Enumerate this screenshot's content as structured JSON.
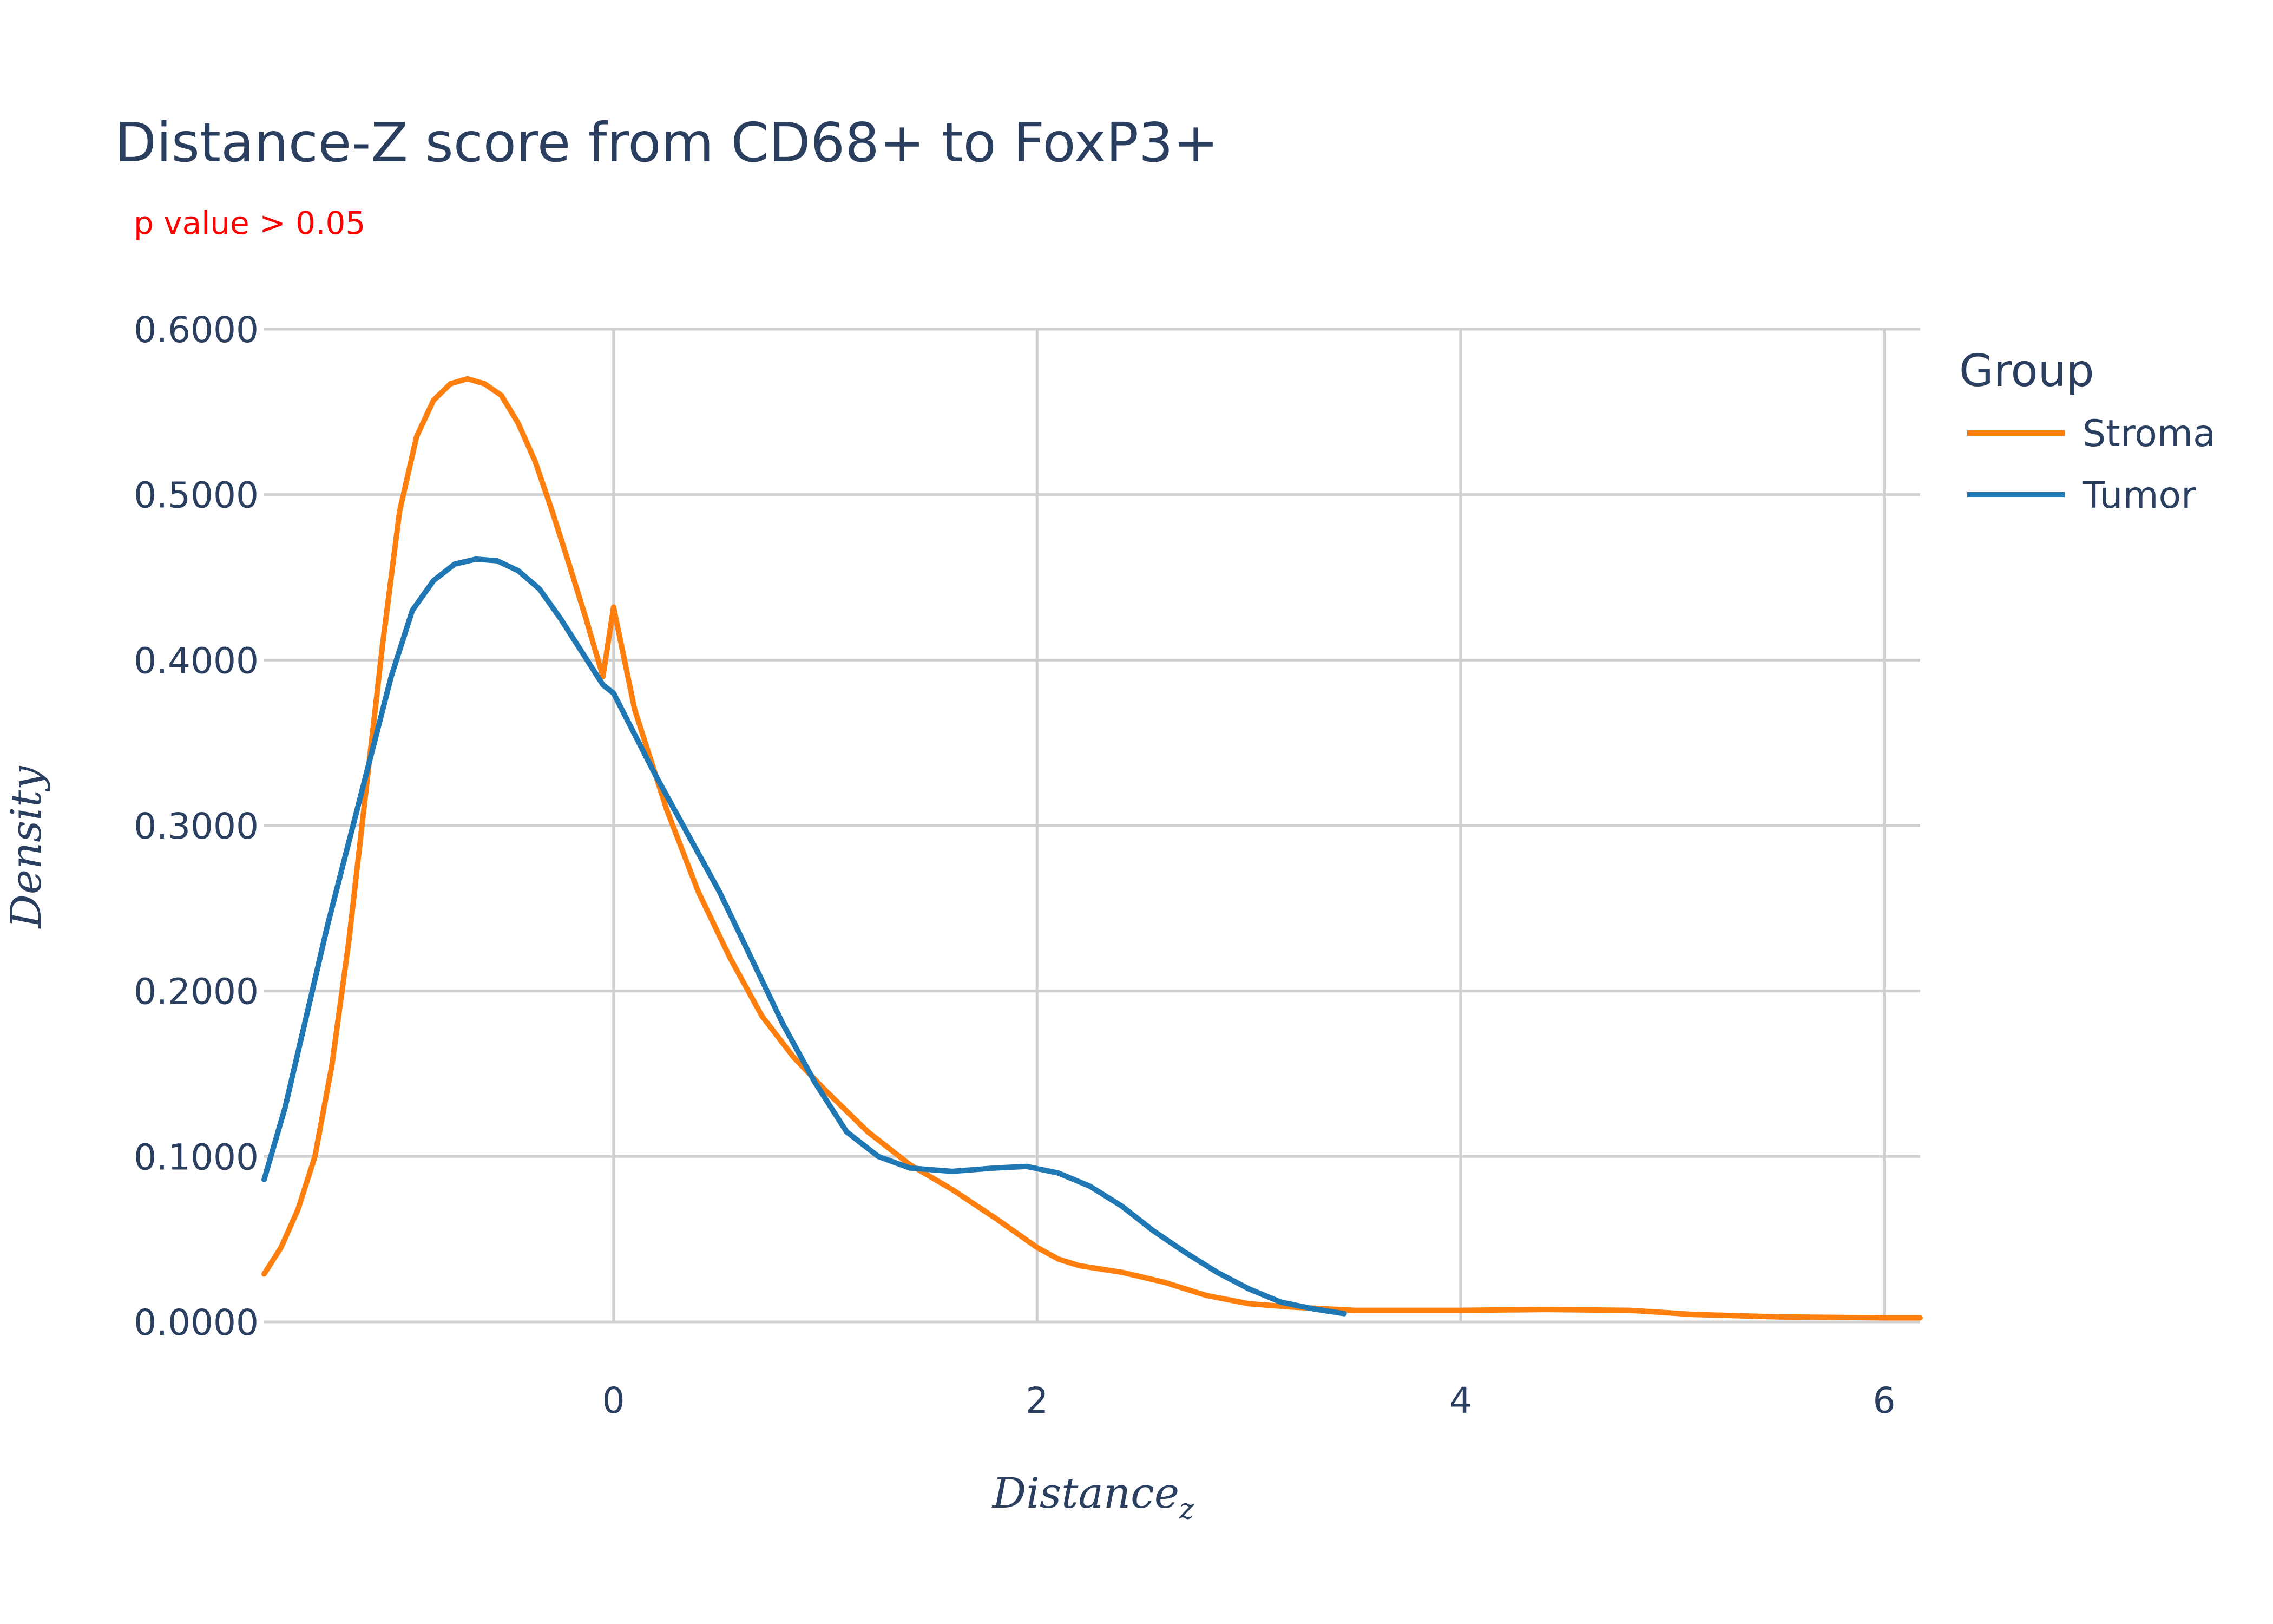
{
  "chart_data": {
    "type": "line",
    "title": "Distance-Z score from CD68+ to FoxP3+",
    "subtitle": "p value > 0.05",
    "xlabel_main": "Distance",
    "xlabel_sub": "z",
    "ylabel": "Density",
    "xlim": [
      -1.65,
      6.17
    ],
    "ylim": [
      0,
      0.6
    ],
    "x_ticks": [
      0,
      2,
      4,
      6
    ],
    "x_tick_labels": [
      "0",
      "2",
      "4",
      "6"
    ],
    "y_ticks": [
      0,
      0.1,
      0.2,
      0.3,
      0.4,
      0.5,
      0.6
    ],
    "y_tick_labels": [
      "0.0000",
      "0.1000",
      "0.2000",
      "0.3000",
      "0.4000",
      "0.5000",
      "0.6000"
    ],
    "grid": true,
    "legend_title": "Group",
    "legend_position": "top-right",
    "series": [
      {
        "name": "Stroma",
        "color": "#ff7f0e",
        "points": [
          [
            -1.65,
            0.029
          ],
          [
            -1.57,
            0.045
          ],
          [
            -1.49,
            0.068
          ],
          [
            -1.41,
            0.1
          ],
          [
            -1.33,
            0.155
          ],
          [
            -1.25,
            0.23
          ],
          [
            -1.17,
            0.32
          ],
          [
            -1.09,
            0.41
          ],
          [
            -1.01,
            0.49
          ],
          [
            -0.93,
            0.535
          ],
          [
            -0.85,
            0.557
          ],
          [
            -0.77,
            0.567
          ],
          [
            -0.69,
            0.57
          ],
          [
            -0.61,
            0.567
          ],
          [
            -0.53,
            0.56
          ],
          [
            -0.45,
            0.543
          ],
          [
            -0.37,
            0.52
          ],
          [
            -0.29,
            0.49
          ],
          [
            -0.21,
            0.458
          ],
          [
            -0.13,
            0.425
          ],
          [
            -0.05,
            0.39
          ],
          [
            0.0,
            0.432
          ],
          [
            0.1,
            0.37
          ],
          [
            0.25,
            0.31
          ],
          [
            0.4,
            0.26
          ],
          [
            0.55,
            0.22
          ],
          [
            0.7,
            0.185
          ],
          [
            0.85,
            0.16
          ],
          [
            1.0,
            0.14
          ],
          [
            1.2,
            0.115
          ],
          [
            1.4,
            0.095
          ],
          [
            1.6,
            0.08
          ],
          [
            1.8,
            0.063
          ],
          [
            2.0,
            0.045
          ],
          [
            2.1,
            0.038
          ],
          [
            2.2,
            0.034
          ],
          [
            2.4,
            0.03
          ],
          [
            2.6,
            0.024
          ],
          [
            2.8,
            0.016
          ],
          [
            3.0,
            0.011
          ],
          [
            3.2,
            0.009
          ],
          [
            3.5,
            0.007
          ],
          [
            4.0,
            0.007
          ],
          [
            4.4,
            0.0075
          ],
          [
            4.8,
            0.007
          ],
          [
            5.1,
            0.0045
          ],
          [
            5.5,
            0.003
          ],
          [
            6.0,
            0.0025
          ],
          [
            6.17,
            0.0025
          ]
        ]
      },
      {
        "name": "Tumor",
        "color": "#1f77b4",
        "points": [
          [
            -1.65,
            0.086
          ],
          [
            -1.55,
            0.13
          ],
          [
            -1.45,
            0.185
          ],
          [
            -1.35,
            0.24
          ],
          [
            -1.25,
            0.29
          ],
          [
            -1.15,
            0.34
          ],
          [
            -1.05,
            0.39
          ],
          [
            -0.95,
            0.43
          ],
          [
            -0.85,
            0.448
          ],
          [
            -0.75,
            0.458
          ],
          [
            -0.65,
            0.461
          ],
          [
            -0.55,
            0.46
          ],
          [
            -0.45,
            0.454
          ],
          [
            -0.35,
            0.443
          ],
          [
            -0.25,
            0.425
          ],
          [
            -0.15,
            0.405
          ],
          [
            -0.05,
            0.385
          ],
          [
            0.0,
            0.38
          ],
          [
            0.1,
            0.355
          ],
          [
            0.2,
            0.33
          ],
          [
            0.35,
            0.295
          ],
          [
            0.5,
            0.26
          ],
          [
            0.65,
            0.22
          ],
          [
            0.8,
            0.18
          ],
          [
            0.95,
            0.145
          ],
          [
            1.1,
            0.115
          ],
          [
            1.25,
            0.1
          ],
          [
            1.4,
            0.093
          ],
          [
            1.6,
            0.091
          ],
          [
            1.8,
            0.093
          ],
          [
            1.95,
            0.094
          ],
          [
            2.1,
            0.09
          ],
          [
            2.25,
            0.082
          ],
          [
            2.4,
            0.07
          ],
          [
            2.55,
            0.055
          ],
          [
            2.7,
            0.042
          ],
          [
            2.85,
            0.03
          ],
          [
            3.0,
            0.02
          ],
          [
            3.15,
            0.012
          ],
          [
            3.3,
            0.008
          ],
          [
            3.45,
            0.005
          ]
        ]
      }
    ]
  }
}
